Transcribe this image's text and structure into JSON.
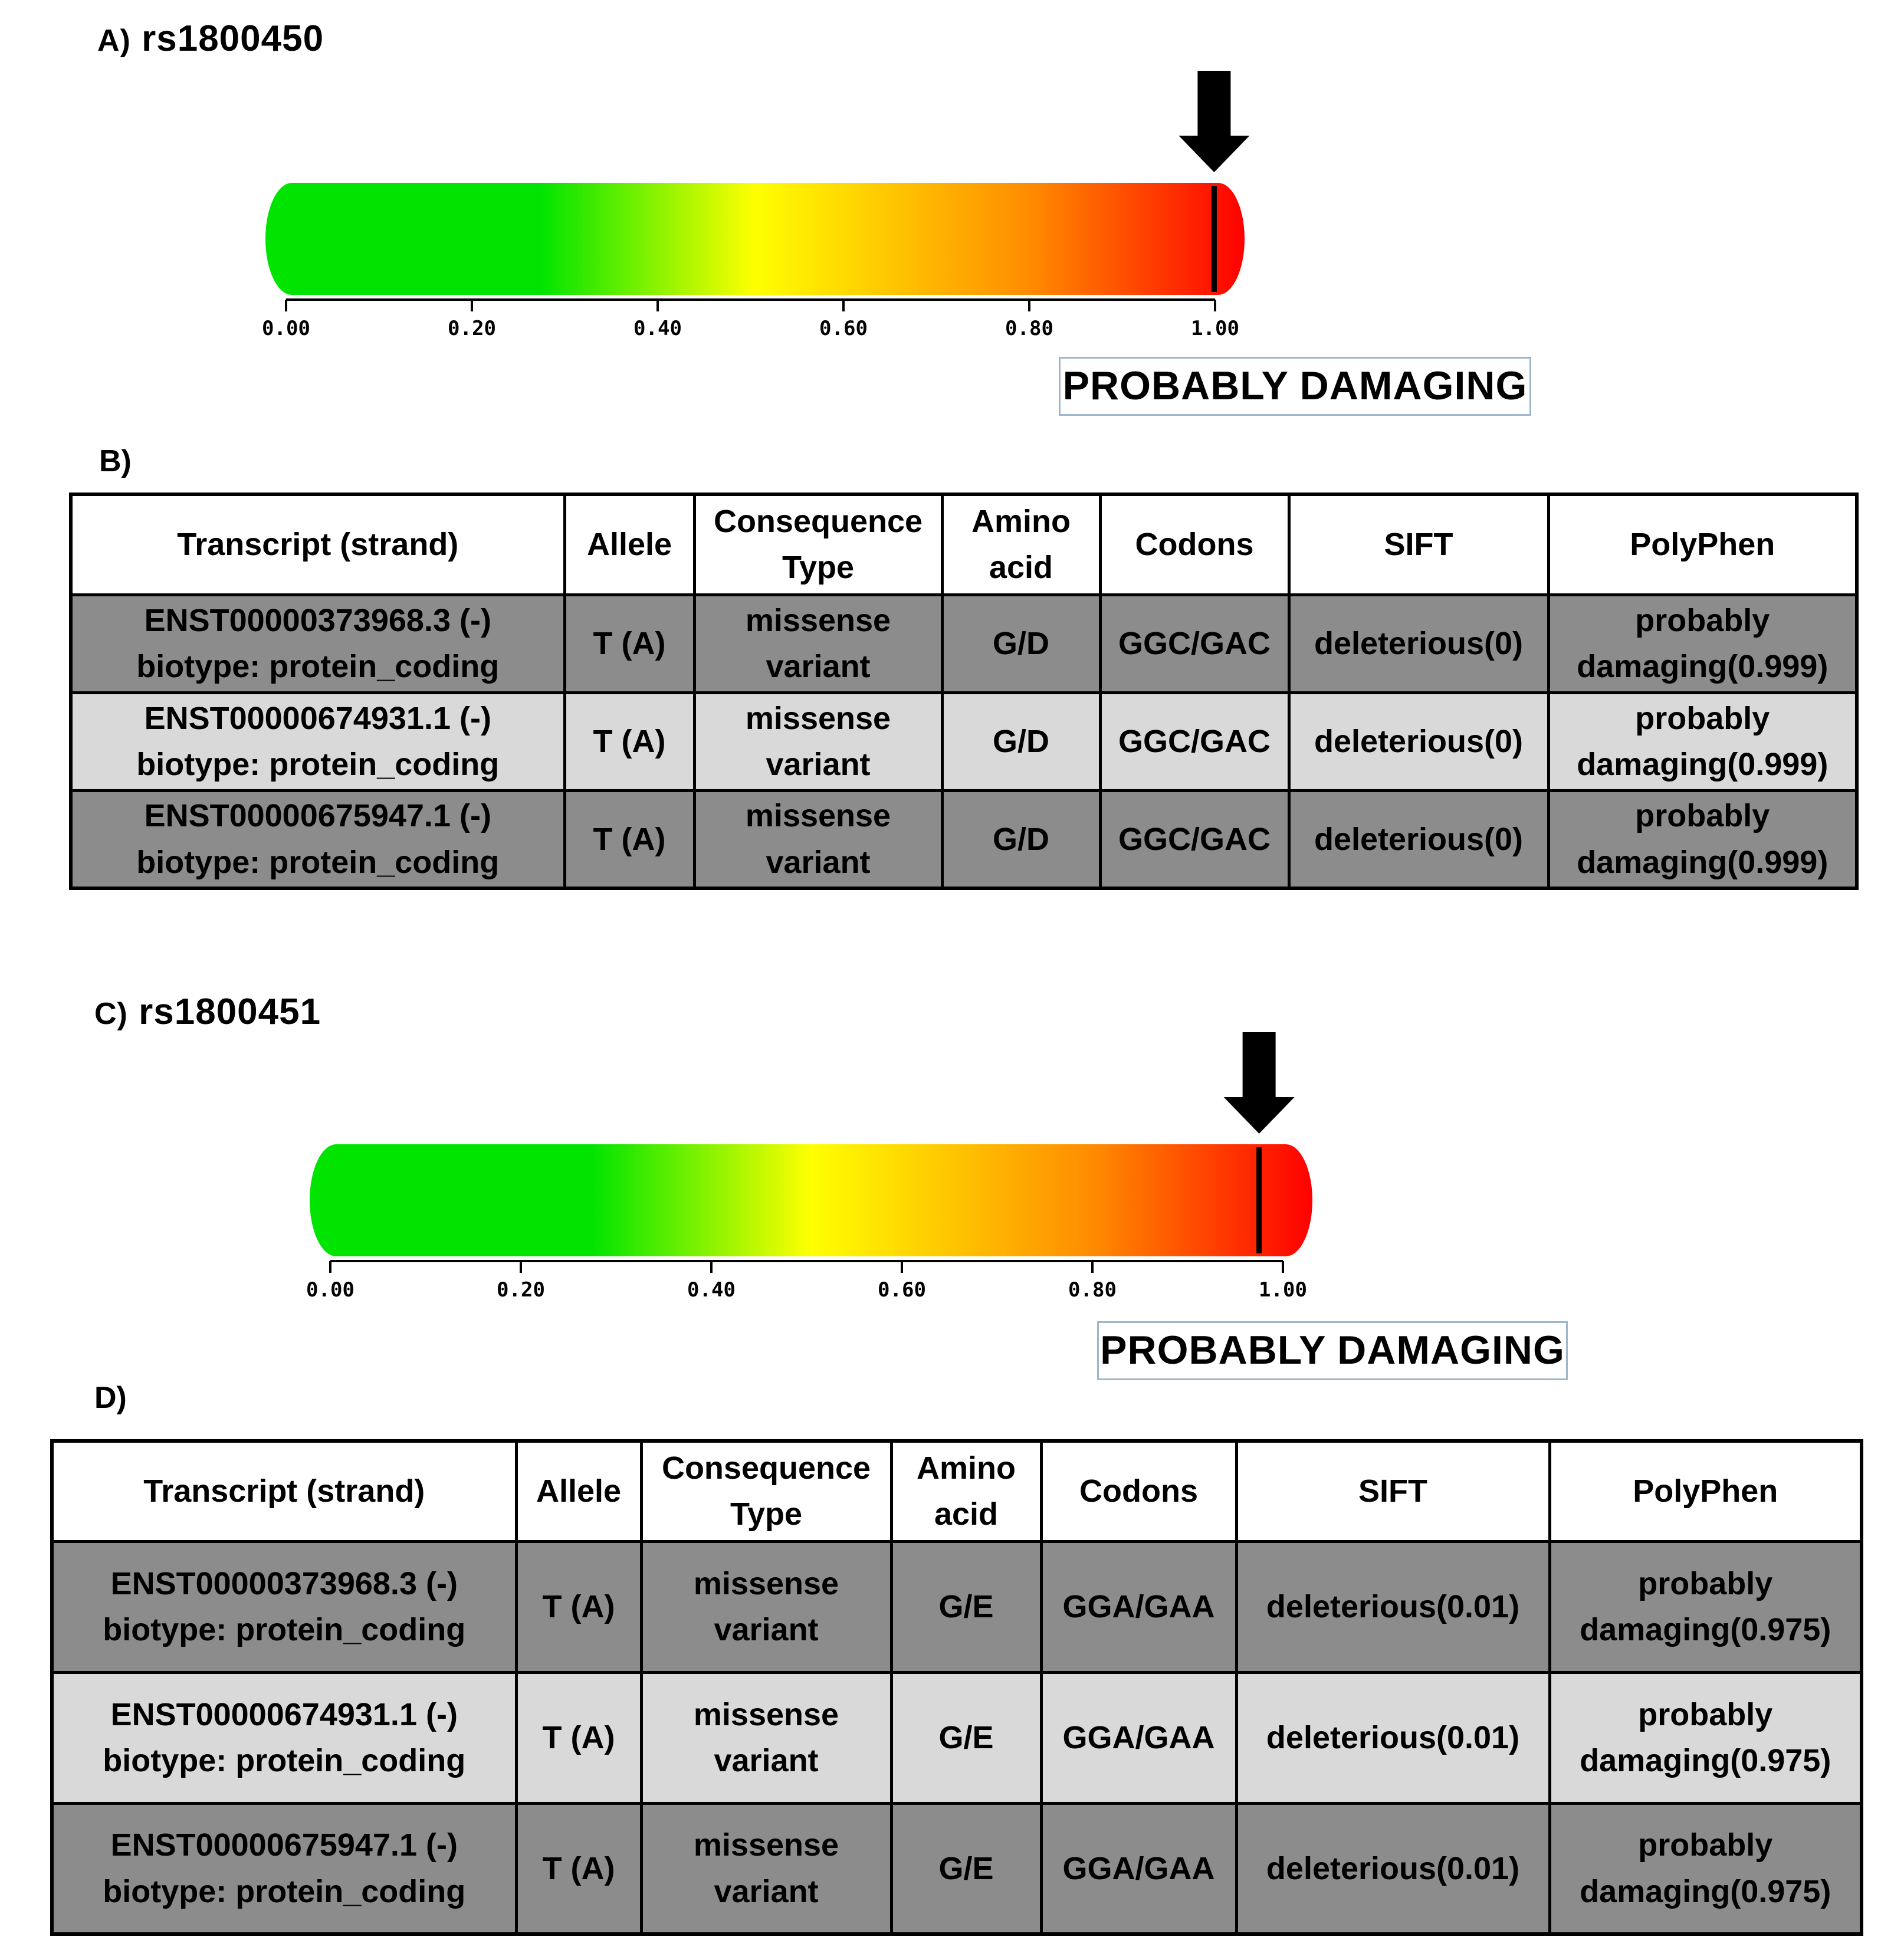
{
  "panel_a": {
    "letter": "A)",
    "snp_id": "rs1800450",
    "score": 0.999,
    "ticks": [
      "0.00",
      "0.20",
      "0.40",
      "0.60",
      "0.80",
      "1.00"
    ],
    "prediction": "PROBABLY DAMAGING"
  },
  "panel_b": {
    "letter": "B)",
    "headers": [
      "Transcript (strand)",
      "Allele",
      "Consequence Type",
      "Amino acid",
      "Codons",
      "SIFT",
      "PolyPhen"
    ],
    "rows": [
      {
        "transcript": "ENST00000373968.3 (-)",
        "biotype": "biotype: protein_coding",
        "allele": "T (A)",
        "consequence_1": "missense",
        "consequence_2": "variant",
        "amino_acid": "G/D",
        "codons": "GGC/GAC",
        "sift": "deleterious(0)",
        "polyphen_1": "probably",
        "polyphen_2": "damaging(0.999)"
      },
      {
        "transcript": "ENST00000674931.1 (-)",
        "biotype": "biotype: protein_coding",
        "allele": "T (A)",
        "consequence_1": "missense",
        "consequence_2": "variant",
        "amino_acid": "G/D",
        "codons": "GGC/GAC",
        "sift": "deleterious(0)",
        "polyphen_1": "probably",
        "polyphen_2": "damaging(0.999)"
      },
      {
        "transcript": "ENST00000675947.1 (-)",
        "biotype": "biotype: protein_coding",
        "allele": "T (A)",
        "consequence_1": "missense",
        "consequence_2": "variant",
        "amino_acid": "G/D",
        "codons": "GGC/GAC",
        "sift": "deleterious(0)",
        "polyphen_1": "probably",
        "polyphen_2": "damaging(0.999)"
      }
    ]
  },
  "panel_c": {
    "letter": "C)",
    "snp_id": "rs1800451",
    "score": 0.975,
    "ticks": [
      "0.00",
      "0.20",
      "0.40",
      "0.60",
      "0.80",
      "1.00"
    ],
    "prediction": "PROBABLY DAMAGING"
  },
  "panel_d": {
    "letter": "D)",
    "headers": [
      "Transcript (strand)",
      "Allele",
      "Consequence Type",
      "Amino acid",
      "Codons",
      "SIFT",
      "PolyPhen"
    ],
    "rows": [
      {
        "transcript": "ENST00000373968.3 (-)",
        "biotype": "biotype: protein_coding",
        "allele": "T (A)",
        "consequence_1": "missense",
        "consequence_2": "variant",
        "amino_acid": "G/E",
        "codons": "GGA/GAA",
        "sift": "deleterious(0.01)",
        "polyphen_1": "probably",
        "polyphen_2": "damaging(0.975)"
      },
      {
        "transcript": "ENST00000674931.1 (-)",
        "biotype": "biotype: protein_coding",
        "allele": "T (A)",
        "consequence_1": "missense",
        "consequence_2": "variant",
        "amino_acid": "G/E",
        "codons": "GGA/GAA",
        "sift": "deleterious(0.01)",
        "polyphen_1": "probably",
        "polyphen_2": "damaging(0.975)"
      },
      {
        "transcript": "ENST00000675947.1 (-)",
        "biotype": "biotype: protein_coding",
        "allele": "T (A)",
        "consequence_1": "missense",
        "consequence_2": "variant",
        "amino_acid": "G/E",
        "codons": "GGA/GAA",
        "sift": "deleterious(0.01)",
        "polyphen_1": "probably",
        "polyphen_2": "damaging(0.975)"
      }
    ]
  },
  "colors": {
    "low": "#00e400",
    "mid": "#ffff00",
    "high": "#ff0000",
    "row_dark": "#8c8c8c",
    "row_light": "#d9d9d9",
    "verdict_border": "#9fb6cf"
  }
}
